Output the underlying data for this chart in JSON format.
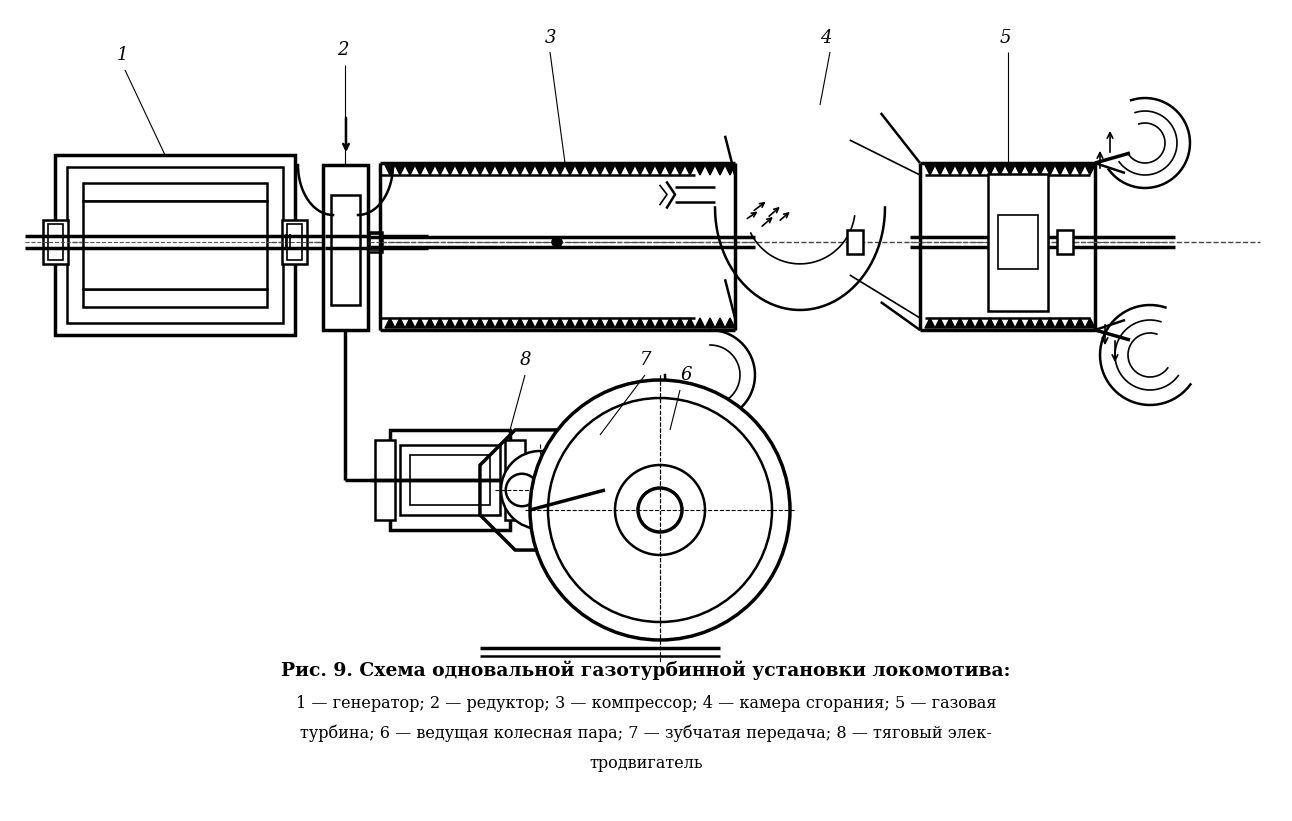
{
  "title": "Рис. 9. Схема одновальной газотурбинной установки локомотива:",
  "caption_line1": "1 — генератор; 2 — редуктор; 3 — компрессор; 4 — камера сгорания; 5 — газовая",
  "caption_line2": "турбина; 6 — ведущая колесная пара; 7 — зубчатая передача; 8 — тяговый элек-",
  "caption_line3": "тродвигатель",
  "bg_color": "#ffffff",
  "line_color": "#000000",
  "fig_width": 12.92,
  "fig_height": 8.21
}
